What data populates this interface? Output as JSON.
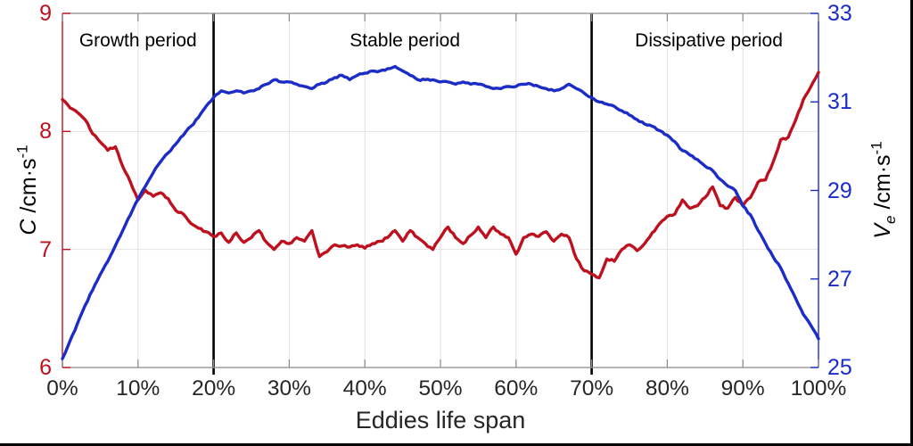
{
  "chart_data": {
    "type": "line",
    "title": "",
    "xlabel": "Eddies life span",
    "background": "#ffffff",
    "grid": true,
    "grid_color": "#e2e2e2",
    "x_axis": {
      "range": [
        0,
        100
      ],
      "tick_labels": [
        "0%",
        "10%",
        "20%",
        "30%",
        "40%",
        "50%",
        "60%",
        "70%",
        "80%",
        "90%",
        "100%"
      ],
      "tick_values": [
        0,
        10,
        20,
        30,
        40,
        50,
        60,
        70,
        80,
        90,
        100
      ],
      "tick_color": "#262626",
      "spine_color": "#8a8a8a"
    },
    "left_axis": {
      "symbol": "C",
      "unit": "/cm·s",
      "sup": "-1",
      "range": [
        6,
        9
      ],
      "ticks": [
        6,
        7,
        8,
        9
      ],
      "color": "#be1120"
    },
    "right_axis": {
      "symbol": "V",
      "sub": "e",
      "unit": "/cm·s",
      "sup": "-1",
      "range": [
        25,
        33
      ],
      "ticks": [
        25,
        27,
        29,
        31,
        33
      ],
      "color": "#1b2cc7"
    },
    "annotations": {
      "vlines_percent": [
        20,
        70
      ],
      "vline_color": "#000000",
      "periods": [
        {
          "label": "Growth period",
          "x_center": 10
        },
        {
          "label": "Stable period",
          "x_center": 45.3
        },
        {
          "label": "Dissipative period",
          "x_center": 85.5
        }
      ]
    },
    "series": [
      {
        "name": "C",
        "axis": "left",
        "color": "#be1120",
        "x_start": 0,
        "x_step": 1,
        "values": [
          8.27,
          8.2,
          8.16,
          8.1,
          7.98,
          7.91,
          7.84,
          7.87,
          7.7,
          7.57,
          7.42,
          7.5,
          7.45,
          7.48,
          7.43,
          7.33,
          7.3,
          7.22,
          7.18,
          7.15,
          7.11,
          7.14,
          7.06,
          7.14,
          7.06,
          7.1,
          7.16,
          7.06,
          7.0,
          7.07,
          7.05,
          7.1,
          7.07,
          7.16,
          6.94,
          6.98,
          7.04,
          7.03,
          7.02,
          7.04,
          7.01,
          7.05,
          7.07,
          7.1,
          7.16,
          7.07,
          7.16,
          7.1,
          7.05,
          7.0,
          7.1,
          7.19,
          7.1,
          7.05,
          7.12,
          7.19,
          7.1,
          7.19,
          7.13,
          7.1,
          6.96,
          7.1,
          7.13,
          7.11,
          7.15,
          7.07,
          7.13,
          7.1,
          6.92,
          6.82,
          6.79,
          6.76,
          6.92,
          6.9,
          7.0,
          7.04,
          6.99,
          7.05,
          7.14,
          7.22,
          7.28,
          7.3,
          7.42,
          7.35,
          7.37,
          7.44,
          7.53,
          7.37,
          7.35,
          7.44,
          7.37,
          7.44,
          7.57,
          7.59,
          7.74,
          7.93,
          7.95,
          8.1,
          8.27,
          8.38,
          8.5
        ]
      },
      {
        "name": "Ve",
        "axis": "right",
        "color": "#1b2cc7",
        "x_start": 0,
        "x_step": 1,
        "values": [
          25.2,
          25.6,
          26.0,
          26.4,
          26.75,
          27.1,
          27.4,
          27.75,
          28.1,
          28.45,
          28.8,
          29.1,
          29.4,
          29.65,
          29.85,
          30.05,
          30.25,
          30.45,
          30.65,
          30.9,
          31.1,
          31.25,
          31.2,
          31.25,
          31.2,
          31.25,
          31.3,
          31.4,
          31.5,
          31.45,
          31.45,
          31.4,
          31.35,
          31.3,
          31.4,
          31.45,
          31.55,
          31.6,
          31.5,
          31.6,
          31.65,
          31.7,
          31.7,
          31.75,
          31.8,
          31.7,
          31.6,
          31.5,
          31.5,
          31.5,
          31.45,
          31.45,
          31.4,
          31.45,
          31.4,
          31.4,
          31.35,
          31.3,
          31.3,
          31.35,
          31.35,
          31.4,
          31.4,
          31.35,
          31.3,
          31.25,
          31.3,
          31.4,
          31.3,
          31.2,
          31.1,
          31.0,
          30.95,
          30.9,
          30.8,
          30.7,
          30.6,
          30.5,
          30.45,
          30.35,
          30.25,
          30.1,
          29.9,
          29.8,
          29.7,
          29.55,
          29.45,
          29.25,
          29.1,
          29.0,
          28.65,
          28.45,
          28.1,
          27.8,
          27.5,
          27.25,
          26.9,
          26.55,
          26.2,
          25.95,
          25.65
        ]
      }
    ]
  }
}
